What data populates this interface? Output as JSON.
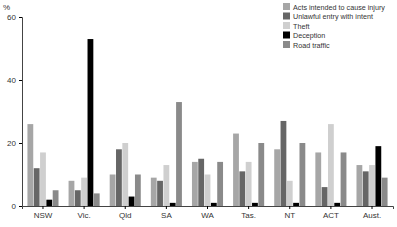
{
  "chart_data": {
    "type": "bar",
    "y_label": "%",
    "categories": [
      "NSW",
      "Vic.",
      "Qld",
      "SA",
      "WA",
      "Tas.",
      "NT",
      "ACT",
      "Aust."
    ],
    "series": [
      {
        "name": "Acts intended to cause injury",
        "color": "#a6a6a6",
        "values": [
          26,
          8,
          10,
          9,
          14,
          23,
          18,
          17,
          13
        ]
      },
      {
        "name": "Unlawful entry with intent",
        "color": "#666666",
        "values": [
          12,
          5,
          18,
          8,
          15,
          11,
          27,
          6,
          11
        ]
      },
      {
        "name": "Theft",
        "color": "#cfcfcf",
        "values": [
          17,
          9,
          20,
          13,
          10,
          14,
          8,
          26,
          13
        ]
      },
      {
        "name": "Deception",
        "color": "#000000",
        "values": [
          2,
          53,
          3,
          1,
          1,
          1,
          1,
          1,
          19
        ]
      },
      {
        "name": "Road traffic",
        "color": "#8a8a8a",
        "values": [
          5,
          4,
          10,
          33,
          14,
          20,
          20,
          17,
          9
        ]
      }
    ],
    "ylim": [
      0,
      60
    ],
    "yticks": [
      0,
      20,
      40,
      60
    ],
    "grid": false,
    "legend": "top-right"
  }
}
